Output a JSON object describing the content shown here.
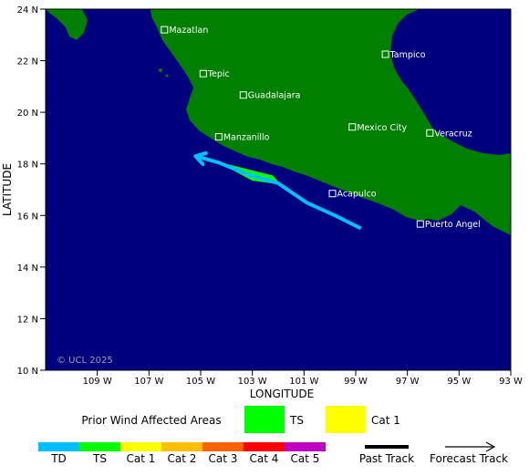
{
  "map": {
    "axes": {
      "xlabel": "LONGITUDE",
      "ylabel": "LATITUDE",
      "x_ticks": [
        "109 W",
        "107 W",
        "105 W",
        "103 W",
        "101 W",
        "99 W",
        "97 W",
        "95 W",
        "93 W"
      ],
      "y_ticks": [
        "24 N",
        "22 N",
        "20 N",
        "18 N",
        "16 N",
        "14 N",
        "12 N",
        "10 N"
      ],
      "lon_range": [
        -111,
        -93
      ],
      "lat_range": [
        10,
        24
      ]
    },
    "copyright": "© UCL 2025",
    "cities": [
      {
        "name": "Mazatlan",
        "lon": -106.4,
        "lat": 23.2
      },
      {
        "name": "Tepic",
        "lon": -104.9,
        "lat": 21.5
      },
      {
        "name": "Guadalajara",
        "lon": -103.35,
        "lat": 20.67
      },
      {
        "name": "Manzanillo",
        "lon": -104.3,
        "lat": 19.05
      },
      {
        "name": "Tampico",
        "lon": -97.85,
        "lat": 22.25
      },
      {
        "name": "Mexico City",
        "lon": -99.13,
        "lat": 19.43
      },
      {
        "name": "Veracruz",
        "lon": -96.13,
        "lat": 19.2
      },
      {
        "name": "Acapulco",
        "lon": -99.9,
        "lat": 16.85
      },
      {
        "name": "Puerto Angel",
        "lon": -96.5,
        "lat": 15.67
      }
    ],
    "track": [
      {
        "lon": -98.8,
        "lat": 15.5
      },
      {
        "lon": -99.8,
        "lat": 16.0
      },
      {
        "lon": -100.9,
        "lat": 16.5
      },
      {
        "lon": -102.0,
        "lat": 17.25
      },
      {
        "lon": -103.2,
        "lat": 17.6
      },
      {
        "lon": -104.3,
        "lat": 18.05
      },
      {
        "lon": -105.2,
        "lat": 18.3
      }
    ],
    "track_color": "#00bfff",
    "ts_wind_area": [
      {
        "lon": -104.4,
        "lat": 18.1
      },
      {
        "lon": -102.2,
        "lat": 17.55
      },
      {
        "lon": -101.9,
        "lat": 17.2
      },
      {
        "lon": -103.0,
        "lat": 17.35
      }
    ],
    "ts_wind_area_color": "#00ff00",
    "ocean_color": "#00007f",
    "land_color": "#007f00"
  },
  "legend": {
    "affected_title": "Prior Wind Affected Areas",
    "affected_items": [
      {
        "label": "TS",
        "color": "#00ff00"
      },
      {
        "label": "Cat 1",
        "color": "#ffff00"
      }
    ],
    "scale": [
      {
        "label": "TD",
        "color": "#00bfff"
      },
      {
        "label": "TS",
        "color": "#00ff00"
      },
      {
        "label": "Cat 1",
        "color": "#ffff00"
      },
      {
        "label": "Cat 2",
        "color": "#ffbf00"
      },
      {
        "label": "Cat 3",
        "color": "#ff6000"
      },
      {
        "label": "Cat 4",
        "color": "#ff0000"
      },
      {
        "label": "Cat 5",
        "color": "#c000c0"
      }
    ],
    "past_track_label": "Past Track",
    "forecast_track_label": "Forecast Track"
  }
}
